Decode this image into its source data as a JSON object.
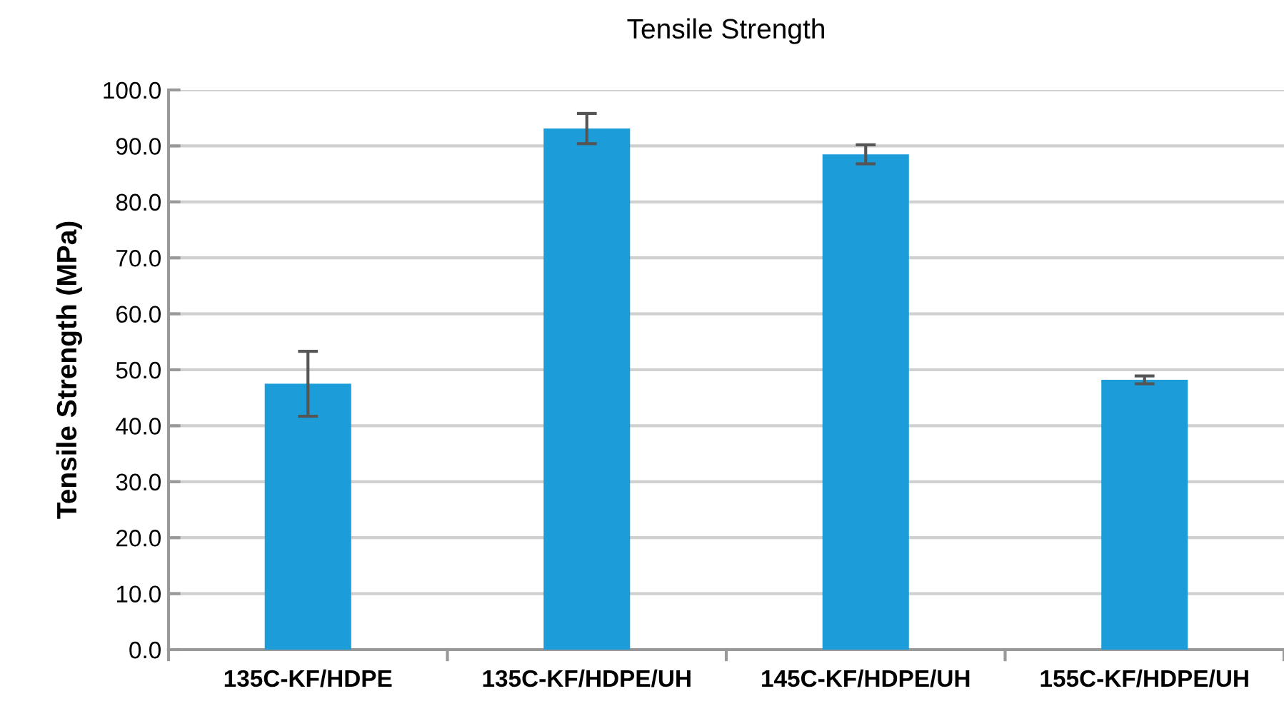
{
  "chart_data": {
    "type": "bar",
    "title": "Tensile Strength",
    "ylabel": "Tensile Strength (MPa)",
    "categories": [
      "135C-KF/HDPE",
      "135C-KF/HDPE/UH",
      "145C-KF/HDPE/UH",
      "155C-KF/HDPE/UH"
    ],
    "values": [
      47.5,
      93.1,
      88.5,
      48.2
    ],
    "errors": [
      5.8,
      2.7,
      1.7,
      0.7
    ],
    "color": "#1c9cd8",
    "ylim": [
      0,
      100
    ],
    "yticks": [
      {
        "value": 0,
        "label": "0.0"
      },
      {
        "value": 10,
        "label": "10.0"
      },
      {
        "value": 20,
        "label": "20.0"
      },
      {
        "value": 30,
        "label": "30.0"
      },
      {
        "value": 40,
        "label": "40.0"
      },
      {
        "value": 50,
        "label": "50.0"
      },
      {
        "value": 60,
        "label": "60.0"
      },
      {
        "value": 70,
        "label": "70.0"
      },
      {
        "value": 80,
        "label": "80.0"
      },
      {
        "value": 90,
        "label": "90.0"
      },
      {
        "value": 100,
        "label": "100.0"
      }
    ],
    "grid": "y",
    "legend": false
  }
}
